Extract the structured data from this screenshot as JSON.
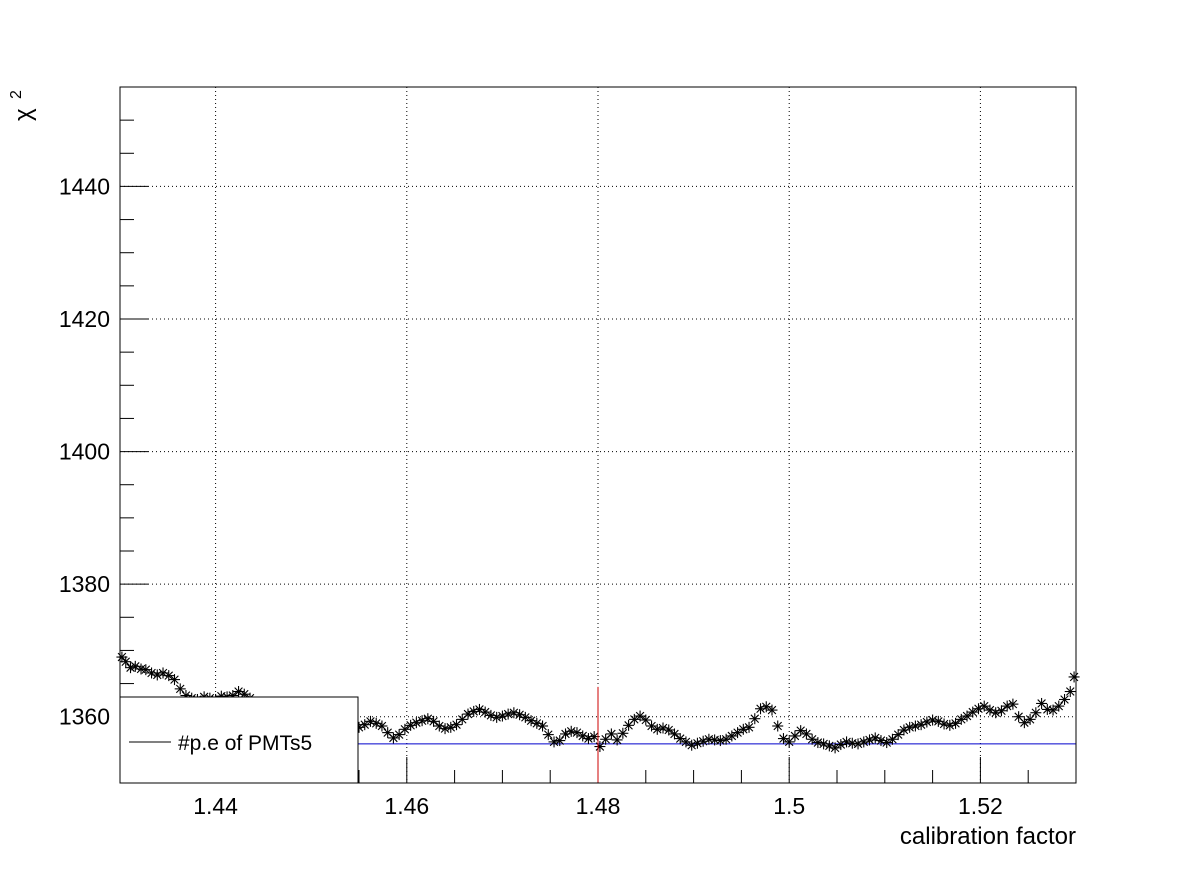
{
  "chart_data": {
    "type": "scatter",
    "title": "",
    "xlabel": "calibration factor",
    "ylabel": "χ",
    "ylabel_superscript": "2",
    "xlim": [
      1.43,
      1.53
    ],
    "ylim": [
      1350,
      1455
    ],
    "x_ticks": [
      1.44,
      1.46,
      1.48,
      1.5,
      1.52
    ],
    "x_tick_labels": [
      "1.44",
      "1.46",
      "1.48",
      "1.5",
      "1.52"
    ],
    "y_ticks": [
      1360,
      1380,
      1400,
      1420,
      1440
    ],
    "y_tick_labels": [
      "1360",
      "1380",
      "1400",
      "1420",
      "1440"
    ],
    "grid": true,
    "marker": "asterisk",
    "series": [
      {
        "color": "#000000",
        "points": [
          [
            1.4302,
            1369.0
          ],
          [
            1.4306,
            1368.3
          ],
          [
            1.4311,
            1367.4
          ],
          [
            1.4316,
            1367.6
          ],
          [
            1.4322,
            1367.2
          ],
          [
            1.4327,
            1367.1
          ],
          [
            1.4333,
            1366.6
          ],
          [
            1.4339,
            1366.3
          ],
          [
            1.4345,
            1366.6
          ],
          [
            1.4351,
            1366.2
          ],
          [
            1.4357,
            1365.6
          ],
          [
            1.4363,
            1364.2
          ],
          [
            1.4369,
            1363.2
          ],
          [
            1.4375,
            1362.8
          ],
          [
            1.4381,
            1362.6
          ],
          [
            1.4388,
            1363.0
          ],
          [
            1.4394,
            1362.8
          ],
          [
            1.44,
            1362.6
          ],
          [
            1.4406,
            1363.1
          ],
          [
            1.4412,
            1363.0
          ],
          [
            1.4418,
            1363.2
          ],
          [
            1.4424,
            1363.8
          ],
          [
            1.443,
            1363.4
          ],
          [
            1.4436,
            1362.8
          ],
          [
            1.4442,
            1362.2
          ],
          [
            1.4448,
            1362.0
          ],
          [
            1.4454,
            1361.4
          ],
          [
            1.446,
            1360.9
          ],
          [
            1.4466,
            1360.5
          ],
          [
            1.4472,
            1360.3
          ],
          [
            1.4478,
            1360.0
          ],
          [
            1.4484,
            1359.8
          ],
          [
            1.449,
            1359.9
          ],
          [
            1.4496,
            1360.2
          ],
          [
            1.4502,
            1360.0
          ],
          [
            1.4508,
            1359.6
          ],
          [
            1.4514,
            1359.2
          ],
          [
            1.452,
            1358.8
          ],
          [
            1.4526,
            1358.6
          ],
          [
            1.4532,
            1358.9
          ],
          [
            1.4538,
            1359.1
          ],
          [
            1.4544,
            1358.7
          ],
          [
            1.455,
            1358.4
          ],
          [
            1.4556,
            1358.8
          ],
          [
            1.4562,
            1359.3
          ],
          [
            1.4568,
            1359.0
          ],
          [
            1.4574,
            1358.6
          ],
          [
            1.458,
            1357.6
          ],
          [
            1.4586,
            1356.8
          ],
          [
            1.4592,
            1357.3
          ],
          [
            1.4598,
            1358.1
          ],
          [
            1.4604,
            1358.7
          ],
          [
            1.461,
            1359.1
          ],
          [
            1.4616,
            1359.4
          ],
          [
            1.4622,
            1359.7
          ],
          [
            1.4628,
            1359.3
          ],
          [
            1.4634,
            1358.6
          ],
          [
            1.464,
            1358.2
          ],
          [
            1.4646,
            1358.4
          ],
          [
            1.4652,
            1358.8
          ],
          [
            1.4658,
            1359.6
          ],
          [
            1.4664,
            1360.4
          ],
          [
            1.467,
            1360.8
          ],
          [
            1.4676,
            1361.1
          ],
          [
            1.4682,
            1360.7
          ],
          [
            1.4688,
            1360.2
          ],
          [
            1.4694,
            1359.9
          ],
          [
            1.47,
            1360.1
          ],
          [
            1.4706,
            1360.4
          ],
          [
            1.4712,
            1360.6
          ],
          [
            1.4718,
            1360.3
          ],
          [
            1.4724,
            1359.9
          ],
          [
            1.473,
            1359.4
          ],
          [
            1.4736,
            1359.0
          ],
          [
            1.4742,
            1358.6
          ],
          [
            1.4748,
            1357.3
          ],
          [
            1.4754,
            1356.2
          ],
          [
            1.476,
            1356.4
          ],
          [
            1.4766,
            1357.4
          ],
          [
            1.4772,
            1357.8
          ],
          [
            1.4778,
            1357.6
          ],
          [
            1.4784,
            1357.1
          ],
          [
            1.479,
            1356.7
          ],
          [
            1.4796,
            1357.0
          ],
          [
            1.4802,
            1355.5
          ],
          [
            1.4808,
            1356.6
          ],
          [
            1.4814,
            1357.4
          ],
          [
            1.482,
            1356.5
          ],
          [
            1.4826,
            1357.5
          ],
          [
            1.4832,
            1358.7
          ],
          [
            1.4838,
            1359.6
          ],
          [
            1.4844,
            1360.1
          ],
          [
            1.485,
            1359.5
          ],
          [
            1.4856,
            1358.6
          ],
          [
            1.4862,
            1358.1
          ],
          [
            1.4868,
            1358.3
          ],
          [
            1.4874,
            1358.0
          ],
          [
            1.488,
            1357.4
          ],
          [
            1.4886,
            1356.7
          ],
          [
            1.4892,
            1356.2
          ],
          [
            1.4898,
            1355.7
          ],
          [
            1.4904,
            1356.0
          ],
          [
            1.491,
            1356.3
          ],
          [
            1.4916,
            1356.6
          ],
          [
            1.4922,
            1356.5
          ],
          [
            1.4928,
            1356.4
          ],
          [
            1.4934,
            1356.6
          ],
          [
            1.494,
            1357.1
          ],
          [
            1.4946,
            1357.6
          ],
          [
            1.4952,
            1358.1
          ],
          [
            1.4958,
            1358.4
          ],
          [
            1.4964,
            1359.7
          ],
          [
            1.497,
            1361.2
          ],
          [
            1.4976,
            1361.5
          ],
          [
            1.4982,
            1361.0
          ],
          [
            1.4988,
            1358.6
          ],
          [
            1.4994,
            1356.7
          ],
          [
            1.5,
            1356.2
          ],
          [
            1.5006,
            1357.1
          ],
          [
            1.5012,
            1357.9
          ],
          [
            1.5018,
            1357.4
          ],
          [
            1.5024,
            1356.6
          ],
          [
            1.503,
            1356.1
          ],
          [
            1.5036,
            1355.9
          ],
          [
            1.5042,
            1355.6
          ],
          [
            1.5048,
            1355.3
          ],
          [
            1.5054,
            1355.8
          ],
          [
            1.506,
            1356.2
          ],
          [
            1.5066,
            1356.0
          ],
          [
            1.5072,
            1355.9
          ],
          [
            1.5078,
            1356.2
          ],
          [
            1.5084,
            1356.5
          ],
          [
            1.509,
            1356.8
          ],
          [
            1.5096,
            1356.4
          ],
          [
            1.5102,
            1356.1
          ],
          [
            1.5108,
            1356.6
          ],
          [
            1.5114,
            1357.3
          ],
          [
            1.512,
            1358.0
          ],
          [
            1.5126,
            1358.4
          ],
          [
            1.5132,
            1358.6
          ],
          [
            1.5138,
            1358.8
          ],
          [
            1.5144,
            1359.2
          ],
          [
            1.515,
            1359.5
          ],
          [
            1.5156,
            1359.3
          ],
          [
            1.5162,
            1358.9
          ],
          [
            1.5168,
            1358.7
          ],
          [
            1.5174,
            1359.0
          ],
          [
            1.518,
            1359.6
          ],
          [
            1.5186,
            1360.1
          ],
          [
            1.5192,
            1360.7
          ],
          [
            1.5198,
            1361.2
          ],
          [
            1.5204,
            1361.6
          ],
          [
            1.521,
            1361.0
          ],
          [
            1.5216,
            1360.6
          ],
          [
            1.5222,
            1360.9
          ],
          [
            1.5228,
            1361.6
          ],
          [
            1.5234,
            1361.9
          ],
          [
            1.524,
            1360.0
          ],
          [
            1.5246,
            1359.1
          ],
          [
            1.5252,
            1359.6
          ],
          [
            1.5258,
            1360.6
          ],
          [
            1.5264,
            1362.0
          ],
          [
            1.527,
            1361.1
          ],
          [
            1.5276,
            1361.0
          ],
          [
            1.5282,
            1361.6
          ],
          [
            1.5288,
            1362.6
          ],
          [
            1.5294,
            1363.8
          ],
          [
            1.5298,
            1366.0
          ]
        ]
      }
    ],
    "hline": {
      "y": 1355.9,
      "color": "#0000cc"
    },
    "vline": {
      "x": 1.48,
      "y_top": 1364.5,
      "color": "#cc0000"
    },
    "legend": {
      "entries": [
        {
          "label": "#p.e of PMTs5",
          "color": "#000000"
        }
      ],
      "placement": "bottom-left"
    }
  }
}
